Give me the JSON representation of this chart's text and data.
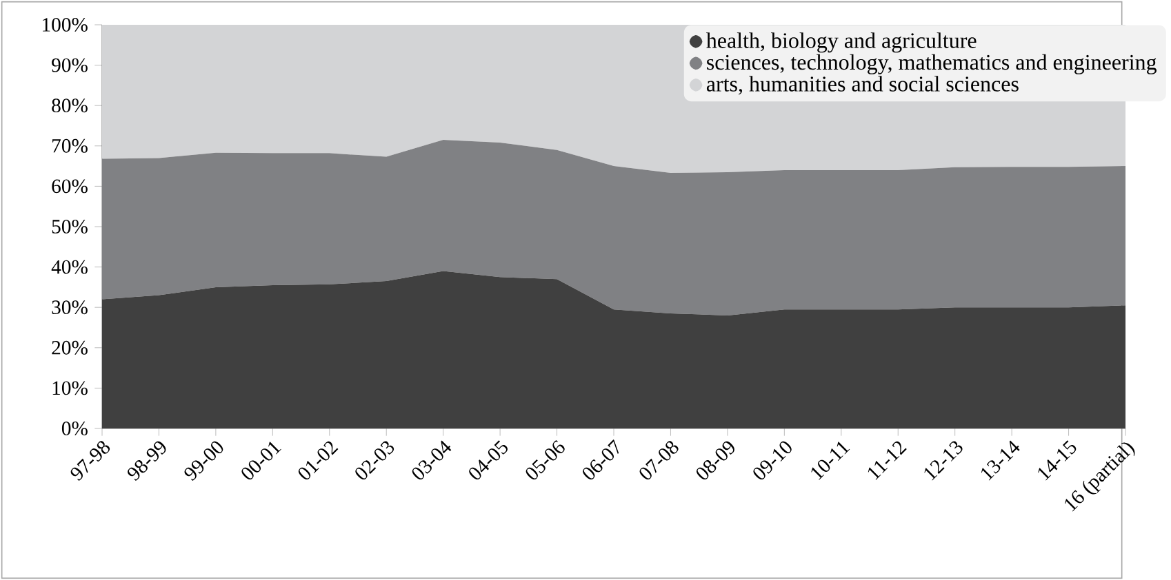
{
  "chart_data": {
    "type": "area",
    "stacked": true,
    "categories": [
      "97-98",
      "98-99",
      "99-00",
      "00-01",
      "01-02",
      "02-03",
      "03-04",
      "04-05",
      "05-06",
      "06-07",
      "07-08",
      "08-09",
      "09-10",
      "10-11",
      "11-12",
      "12-13",
      "13-14",
      "14-15",
      "16 (partial)"
    ],
    "series": [
      {
        "name": "health, biology and agriculture",
        "color": "#404040",
        "values": [
          32,
          33,
          35,
          35.5,
          35.7,
          36.5,
          39,
          37.5,
          37,
          29.5,
          28.5,
          28,
          29.5,
          29.5,
          29.5,
          30,
          30,
          30,
          30.5
        ]
      },
      {
        "name": "sciences, technology, mathematics and engineering",
        "color": "#808184",
        "values": [
          34.8,
          34,
          33.3,
          32.7,
          32.5,
          30.8,
          32.5,
          33.3,
          32,
          35.5,
          34.8,
          35.5,
          34.5,
          34.5,
          34.5,
          34.7,
          34.8,
          34.8,
          34.5
        ]
      },
      {
        "name": "arts, humanities and social sciences",
        "color": "#d3d4d6",
        "values": [
          33.2,
          33,
          31.7,
          31.8,
          31.8,
          32.7,
          28.5,
          29.2,
          31,
          35,
          36.7,
          36.5,
          36,
          36,
          36,
          35.3,
          35.2,
          35.2,
          35
        ]
      }
    ],
    "ylim": [
      0,
      100
    ],
    "yticks": [
      {
        "value": 0,
        "label": "0%"
      },
      {
        "value": 10,
        "label": "10%"
      },
      {
        "value": 20,
        "label": "20%"
      },
      {
        "value": 30,
        "label": "30%"
      },
      {
        "value": 40,
        "label": "40%"
      },
      {
        "value": 50,
        "label": "50%"
      },
      {
        "value": 60,
        "label": "60%"
      },
      {
        "value": 70,
        "label": "70%"
      },
      {
        "value": 80,
        "label": "80%"
      },
      {
        "value": 90,
        "label": "90%"
      },
      {
        "value": 100,
        "label": "100%"
      }
    ],
    "legend": "top right",
    "grid": false
  }
}
